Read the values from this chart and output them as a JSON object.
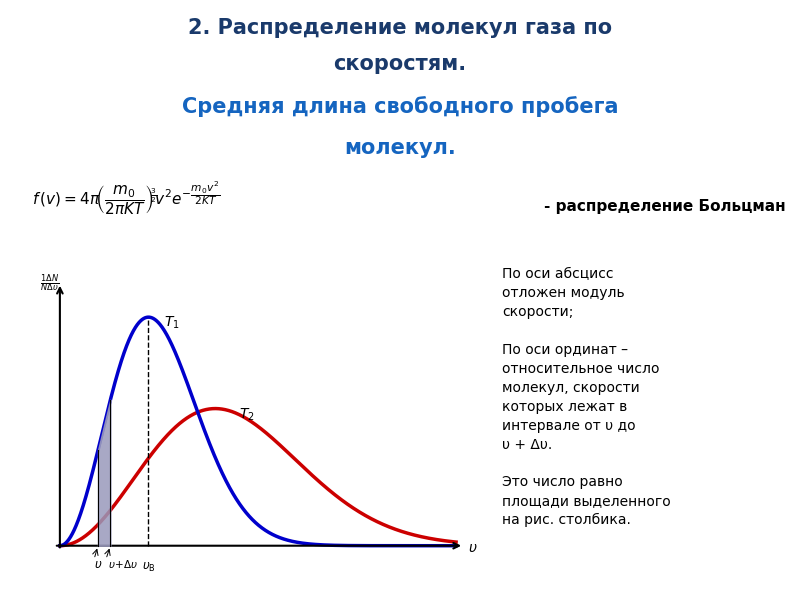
{
  "title_line1": "2. Распределение молекул газа по",
  "title_line2": "скоростям.",
  "title_line3": "Средняя длина свободного пробега",
  "title_line4": "молекул.",
  "title_color": "#1a3a6b",
  "title_line34_color": "#1565C0",
  "bg_color": "#ffffff",
  "plot_bg_color": "#dff0df",
  "plot_border_color": "#5a7a5a",
  "boltzmann_text": "- распределение Больцман",
  "right_text": "По оси абсцисс\nотложен модуль\nскорости;\n\nПо оси ординат –\nотносительное число\nмолекул, скорости\nкоторых лежат в\nинтервале от υ до\nυ + Δυ.\n\nЭто число равно\nплощади выделенного\nна рис. столбика.",
  "blue_line_color": "#0000cc",
  "red_line_color": "#cc0000",
  "bar_color": "#9999bb",
  "a1": 20.0,
  "a2": 6.5,
  "red_scale": 0.6
}
